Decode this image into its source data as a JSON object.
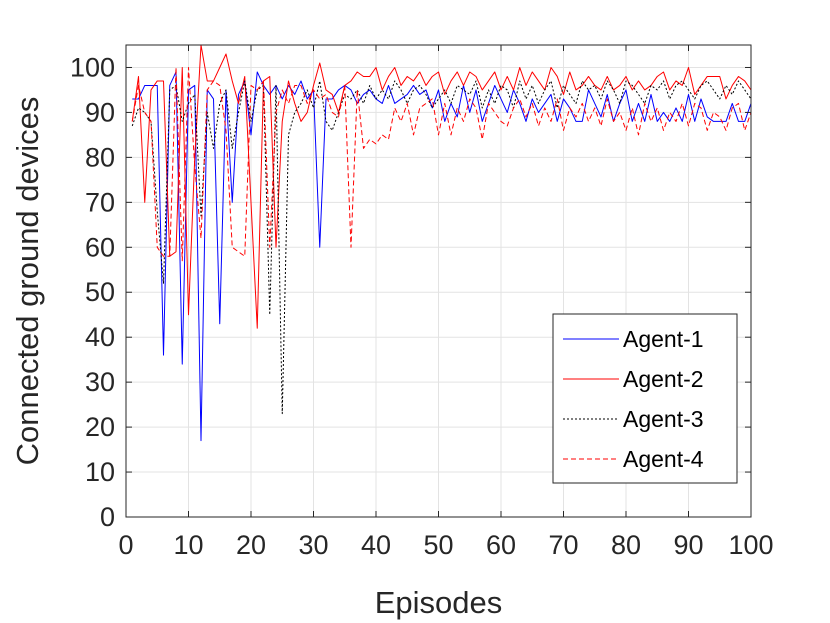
{
  "chart_data": {
    "type": "line",
    "xlabel": "Episodes",
    "ylabel": "Connected ground devices",
    "xlim": [
      0,
      100
    ],
    "ylim": [
      0,
      105
    ],
    "xticks": [
      0,
      10,
      20,
      30,
      40,
      50,
      60,
      70,
      80,
      90,
      100
    ],
    "yticks": [
      0,
      10,
      20,
      30,
      40,
      50,
      60,
      70,
      80,
      90,
      100
    ],
    "grid": true,
    "legend_position": "bottom-right",
    "x": [
      1,
      2,
      3,
      4,
      5,
      6,
      7,
      8,
      9,
      10,
      11,
      12,
      13,
      14,
      15,
      16,
      17,
      18,
      19,
      20,
      21,
      22,
      23,
      24,
      25,
      26,
      27,
      28,
      29,
      30,
      31,
      32,
      33,
      34,
      35,
      36,
      37,
      38,
      39,
      40,
      41,
      42,
      43,
      44,
      45,
      46,
      47,
      48,
      49,
      50,
      51,
      52,
      53,
      54,
      55,
      56,
      57,
      58,
      59,
      60,
      61,
      62,
      63,
      64,
      65,
      66,
      67,
      68,
      69,
      70,
      71,
      72,
      73,
      74,
      75,
      76,
      77,
      78,
      79,
      80,
      81,
      82,
      83,
      84,
      85,
      86,
      87,
      88,
      89,
      90,
      91,
      92,
      93,
      94,
      95,
      96,
      97,
      98,
      99,
      100
    ],
    "series": [
      {
        "name": "Agent-1",
        "color": "#0000ff",
        "dash": "solid",
        "values": [
          93,
          93,
          96,
          96,
          96,
          36,
          96,
          99,
          34,
          95,
          96,
          17,
          95,
          93,
          43,
          95,
          70,
          94,
          97,
          85,
          99,
          96,
          94,
          96,
          93,
          96,
          94,
          97,
          93,
          95,
          60,
          93,
          93,
          95,
          96,
          95,
          92,
          94,
          95,
          93,
          92,
          96,
          92,
          93,
          94,
          96,
          94,
          95,
          91,
          95,
          88,
          92,
          89,
          96,
          90,
          95,
          88,
          92,
          96,
          93,
          90,
          95,
          92,
          88,
          93,
          90,
          92,
          94,
          88,
          93,
          91,
          88,
          88,
          95,
          92,
          89,
          94,
          88,
          92,
          95,
          88,
          92,
          88,
          94,
          88,
          90,
          88,
          91,
          88,
          94,
          88,
          93,
          89,
          88,
          88,
          88,
          92,
          88,
          88,
          92
        ]
      },
      {
        "name": "Agent-2",
        "color": "#ff0000",
        "dash": "solid",
        "values": [
          88,
          98,
          70,
          95,
          97,
          97,
          58,
          59,
          100,
          45,
          80,
          105,
          97,
          97,
          100,
          103,
          97,
          92,
          98,
          70,
          42,
          97,
          98,
          60,
          88,
          97,
          92,
          88,
          90,
          96,
          101,
          95,
          94,
          90,
          96,
          97,
          99,
          98,
          98,
          100,
          95,
          98,
          100,
          96,
          98,
          97,
          99,
          96,
          98,
          99,
          94,
          97,
          99,
          96,
          99,
          98,
          95,
          97,
          99,
          95,
          98,
          95,
          100,
          96,
          99,
          97,
          95,
          100,
          98,
          94,
          99,
          95,
          96,
          98,
          96,
          95,
          98,
          95,
          96,
          98,
          95,
          97,
          95,
          96,
          98,
          99,
          95,
          97,
          96,
          100,
          94,
          96,
          98,
          98,
          98,
          93,
          96,
          98,
          97,
          95
        ]
      },
      {
        "name": "Agent-3",
        "color": "#000000",
        "dash": "dotted",
        "values": [
          87,
          91,
          90,
          88,
          68,
          52,
          95,
          96,
          88,
          92,
          94,
          67,
          90,
          82,
          92,
          95,
          82,
          90,
          97,
          88,
          95,
          96,
          45,
          96,
          23,
          85,
          90,
          92,
          95,
          91,
          97,
          88,
          86,
          90,
          94,
          93,
          95,
          92,
          96,
          93,
          95,
          93,
          97,
          95,
          92,
          95,
          96,
          94,
          91,
          93,
          95,
          92,
          96,
          95,
          94,
          97,
          91,
          95,
          92,
          96,
          95,
          91,
          97,
          93,
          96,
          92,
          95,
          97,
          91,
          96,
          94,
          92,
          97,
          95,
          96,
          93,
          97,
          95,
          92,
          97,
          96,
          94,
          92,
          96,
          95,
          97,
          93,
          96,
          97,
          95,
          93,
          96,
          97,
          95,
          93,
          96,
          94,
          97,
          95,
          93
        ]
      },
      {
        "name": "Agent-4",
        "color": "#ff0000",
        "dash": "dashed",
        "values": [
          88,
          96,
          90,
          88,
          60,
          58,
          58,
          100,
          57,
          100,
          78,
          62,
          95,
          97,
          96,
          86,
          60,
          59,
          58,
          96,
          95,
          97,
          60,
          90,
          95,
          92,
          96,
          96,
          92,
          95,
          93,
          94,
          90,
          89,
          96,
          60,
          95,
          82,
          84,
          83,
          85,
          84,
          91,
          88,
          92,
          85,
          91,
          92,
          93,
          85,
          92,
          85,
          91,
          88,
          93,
          91,
          84,
          92,
          90,
          88,
          87,
          91,
          93,
          89,
          92,
          87,
          91,
          88,
          93,
          86,
          91,
          89,
          92,
          88,
          91,
          87,
          93,
          88,
          90,
          86,
          91,
          85,
          92,
          88,
          91,
          86,
          90,
          88,
          92,
          87,
          92,
          91,
          86,
          90,
          89,
          86,
          91,
          92,
          86,
          90
        ]
      }
    ]
  }
}
